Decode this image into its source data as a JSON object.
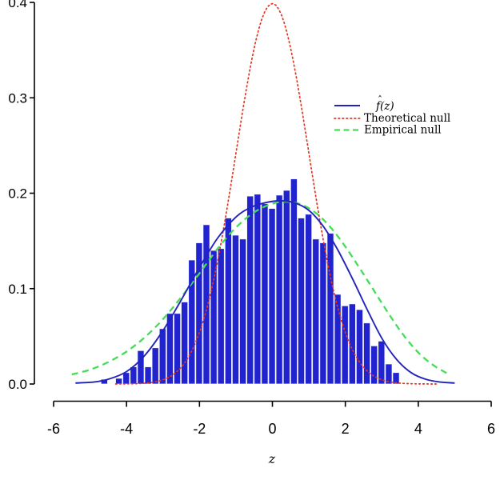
{
  "chart_data": {
    "type": "bar",
    "subtype": "density-histogram-with-curves",
    "title": "",
    "xlabel": "z",
    "ylabel": "",
    "xlim": [
      -6,
      6
    ],
    "ylim": [
      0,
      0.4
    ],
    "grid": false,
    "x_tick_values": [
      -6,
      -4,
      -2,
      0,
      2,
      4,
      6
    ],
    "x_tick_labels": [
      "-6",
      "-4",
      "-2",
      "0",
      "2",
      "4",
      "6"
    ],
    "y_tick_values": [
      0.0,
      0.1,
      0.2,
      0.3,
      0.4
    ],
    "y_tick_labels": [
      "0.0",
      "0.1",
      "0.2",
      "0.3",
      "0.4"
    ],
    "histogram": {
      "bin_start": -4.7,
      "bin_width": 0.2,
      "bar_color": "#2023CE",
      "bar_edge_color": "rgba(255,255,255,0.85)",
      "heights": [
        0.005,
        0.0,
        0.006,
        0.012,
        0.018,
        0.035,
        0.018,
        0.038,
        0.058,
        0.074,
        0.074,
        0.086,
        0.13,
        0.148,
        0.167,
        0.14,
        0.142,
        0.174,
        0.156,
        0.152,
        0.197,
        0.199,
        0.189,
        0.184,
        0.198,
        0.203,
        0.215,
        0.174,
        0.178,
        0.152,
        0.148,
        0.158,
        0.094,
        0.082,
        0.084,
        0.078,
        0.064,
        0.04,
        0.045,
        0.021,
        0.012
      ]
    },
    "series": [
      {
        "name": "fhat",
        "legend_label": "f(z)",
        "legend_hat": "ˆ",
        "style": "solid",
        "color": "#2222BE",
        "points": [
          [
            -5.4,
            0.001
          ],
          [
            -4.9,
            0.002
          ],
          [
            -4.5,
            0.005
          ],
          [
            -4.0,
            0.013
          ],
          [
            -3.5,
            0.03
          ],
          [
            -3.0,
            0.056
          ],
          [
            -2.5,
            0.088
          ],
          [
            -2.0,
            0.122
          ],
          [
            -1.5,
            0.153
          ],
          [
            -1.0,
            0.175
          ],
          [
            -0.6,
            0.185
          ],
          [
            -0.2,
            0.19
          ],
          [
            0.2,
            0.192
          ],
          [
            0.6,
            0.19
          ],
          [
            1.0,
            0.182
          ],
          [
            1.4,
            0.165
          ],
          [
            1.8,
            0.14
          ],
          [
            2.2,
            0.11
          ],
          [
            2.6,
            0.078
          ],
          [
            3.0,
            0.048
          ],
          [
            3.4,
            0.026
          ],
          [
            3.8,
            0.012
          ],
          [
            4.2,
            0.005
          ],
          [
            4.6,
            0.002
          ],
          [
            5.0,
            0.001
          ]
        ]
      },
      {
        "name": "theoretical-null",
        "legend_label": "Theoretical null",
        "style": "dotted",
        "color": "#E6341E",
        "normal": {
          "mean": 0,
          "sd": 1,
          "peak_density": 0.3989,
          "z_min": -4.3,
          "z_max": 4.5
        }
      },
      {
        "name": "empirical-null",
        "legend_label": "Empirical null",
        "style": "dashed",
        "color": "#44DD55",
        "points": [
          [
            -5.5,
            0.01
          ],
          [
            -5.0,
            0.015
          ],
          [
            -4.5,
            0.023
          ],
          [
            -4.0,
            0.034
          ],
          [
            -3.5,
            0.049
          ],
          [
            -3.0,
            0.068
          ],
          [
            -2.5,
            0.091
          ],
          [
            -2.0,
            0.116
          ],
          [
            -1.5,
            0.142
          ],
          [
            -1.0,
            0.164
          ],
          [
            -0.5,
            0.18
          ],
          [
            0.0,
            0.189
          ],
          [
            0.4,
            0.191
          ],
          [
            0.8,
            0.188
          ],
          [
            1.2,
            0.179
          ],
          [
            1.6,
            0.164
          ],
          [
            2.0,
            0.144
          ],
          [
            2.4,
            0.121
          ],
          [
            2.8,
            0.097
          ],
          [
            3.2,
            0.073
          ],
          [
            3.6,
            0.051
          ],
          [
            4.0,
            0.033
          ],
          [
            4.4,
            0.02
          ],
          [
            4.8,
            0.011
          ]
        ]
      }
    ],
    "legend_position": "inside-upper-right"
  }
}
